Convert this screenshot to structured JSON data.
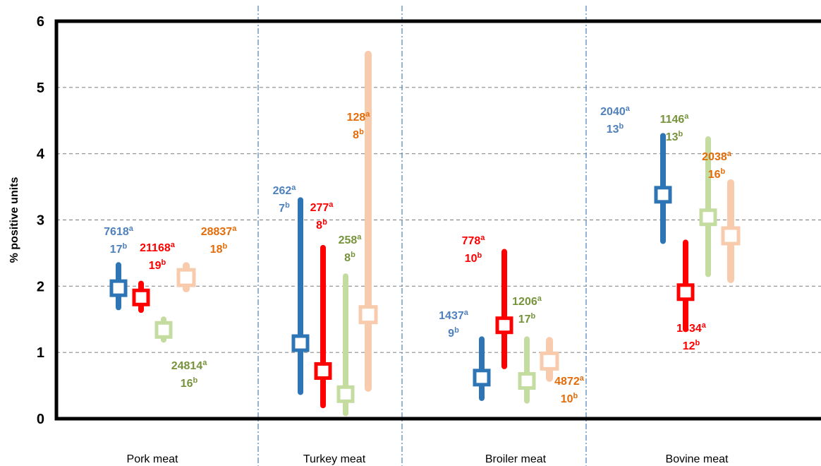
{
  "chart_data": {
    "type": "scatter",
    "title": "",
    "xlabel": "",
    "ylabel": "% positive units",
    "ylim": [
      0,
      6
    ],
    "yticks": [
      "0",
      "1",
      "2",
      "3",
      "4",
      "5",
      "6"
    ],
    "grid": "horizontal dashed",
    "categories": [
      "Pork meat",
      "Turkey meat",
      "Broiler meat",
      "Bovine meat"
    ],
    "colors": [
      "#2E75B6",
      "#FF0000",
      "#C5DCA0",
      "#F8CBAD"
    ],
    "label_colors": [
      "#4F81BD",
      "#FF0000",
      "#77933C",
      "#E36C09"
    ],
    "series": [
      {
        "points": [
          {
            "category": "Pork meat",
            "value": 1.97,
            "low": 1.68,
            "high": 2.32
          },
          {
            "category": "Turkey meat",
            "value": 1.14,
            "low": 0.4,
            "high": 3.3
          },
          {
            "category": "Broiler meat",
            "value": 0.62,
            "low": 0.31,
            "high": 1.2
          },
          {
            "category": "Bovine meat",
            "value": 3.38,
            "low": 2.68,
            "high": 4.27
          }
        ],
        "labels": [
          {
            "n": "7618",
            "k": "17"
          },
          {
            "n": "262",
            "k": "7"
          },
          {
            "n": "1437",
            "k": "9"
          },
          {
            "n": "2040",
            "k": "13"
          }
        ]
      },
      {
        "points": [
          {
            "category": "Pork meat",
            "value": 1.83,
            "low": 1.64,
            "high": 2.04
          },
          {
            "category": "Turkey meat",
            "value": 0.72,
            "low": 0.2,
            "high": 2.58
          },
          {
            "category": "Broiler meat",
            "value": 1.41,
            "low": 0.79,
            "high": 2.52
          },
          {
            "category": "Bovine meat",
            "value": 1.91,
            "low": 1.35,
            "high": 2.66
          }
        ],
        "labels": [
          {
            "n": "21168",
            "k": "19"
          },
          {
            "n": "277",
            "k": "8"
          },
          {
            "n": "778",
            "k": "10"
          },
          {
            "n": "1834",
            "k": "12"
          }
        ]
      },
      {
        "points": [
          {
            "category": "Pork meat",
            "value": 1.34,
            "low": 1.19,
            "high": 1.5
          },
          {
            "category": "Turkey meat",
            "value": 0.37,
            "low": 0.08,
            "high": 2.15
          },
          {
            "category": "Broiler meat",
            "value": 0.57,
            "low": 0.27,
            "high": 1.2
          },
          {
            "category": "Bovine meat",
            "value": 3.04,
            "low": 2.18,
            "high": 4.22
          }
        ],
        "labels": [
          {
            "n": "24814",
            "k": "16"
          },
          {
            "n": "258",
            "k": "8"
          },
          {
            "n": "1206",
            "k": "17"
          },
          {
            "n": "1146",
            "k": "13"
          }
        ]
      },
      {
        "points": [
          {
            "category": "Pork meat",
            "value": 2.13,
            "low": 1.96,
            "high": 2.31
          },
          {
            "category": "Turkey meat",
            "value": 1.57,
            "low": 0.46,
            "high": 5.5
          },
          {
            "category": "Broiler meat",
            "value": 0.87,
            "low": 0.61,
            "high": 1.18
          },
          {
            "category": "Bovine meat",
            "value": 2.76,
            "low": 2.1,
            "high": 3.56
          }
        ],
        "labels": [
          {
            "n": "28837",
            "k": "18"
          },
          {
            "n": "128",
            "k": "8"
          },
          {
            "n": "4872",
            "k": "10"
          },
          {
            "n": "2038",
            "k": "16"
          }
        ]
      }
    ],
    "superscripts": {
      "n": "a",
      "k": "b"
    }
  }
}
